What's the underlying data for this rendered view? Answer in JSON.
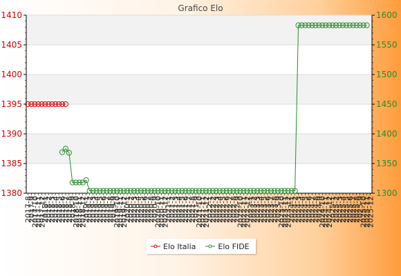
{
  "chart_data": {
    "type": "line",
    "title": "Grafico Elo",
    "y_left": {
      "ylim": [
        1380,
        1410
      ],
      "ticks": [
        1380,
        1385,
        1390,
        1395,
        1400,
        1405,
        1410
      ],
      "color": "#d00000"
    },
    "y_right": {
      "ylim": [
        1300,
        1600
      ],
      "ticks": [
        1300,
        1350,
        1400,
        1450,
        1500,
        1550,
        1600
      ],
      "color": "#2a8a2a"
    },
    "x_labels": [
      "2017-8",
      "2017-9",
      "2017-10",
      "2017-11",
      "2017-12",
      "2018-1",
      "2018-2",
      "2018-3",
      "2018-4",
      "2018-5",
      "2018-6",
      "2018-7",
      "2018-8",
      "2018-9",
      "2018-10",
      "2018-11",
      "2018-12",
      "2019-1",
      "2019-2",
      "2019-3",
      "2019-4",
      "2019-5",
      "2019-6",
      "2019-7",
      "2019-8",
      "2019-9",
      "2019-10",
      "2019-11",
      "2019-12",
      "2020-1",
      "2020-2",
      "2020-3",
      "2020-4",
      "2020-5",
      "2020-6",
      "2020-7",
      "2020-8",
      "2020-9",
      "2020-10",
      "2020-11",
      "2020-12",
      "2021-1",
      "2021-2",
      "2021-3",
      "2021-4",
      "2021-5",
      "2021-6",
      "2021-7",
      "2021-8",
      "2021-9",
      "2021-10",
      "2021-11",
      "2021-12",
      "2022-1",
      "2022-2",
      "2022-3",
      "2022-4",
      "2022-5",
      "2022-6",
      "2022-7",
      "2022-8",
      "2022-9",
      "2022-10",
      "2022-11",
      "2022-12",
      "2023-1",
      "2023-2",
      "2023-3",
      "2023-4",
      "2023-5",
      "2023-6",
      "2023-7",
      "2023-8",
      "2023-9",
      "2023-10",
      "2023-11",
      "2023-12",
      "2024-1",
      "2024-2",
      "2024-3",
      "2024-4",
      "2024-5",
      "2024-6",
      "2024-7",
      "2024-8",
      "2024-9",
      "2024-10",
      "2024-11",
      "2024-12",
      "2025-1",
      "2025-2",
      "2025-3",
      "2025-4",
      "2025-5",
      "2025-6",
      "2025-7",
      "2025-8",
      "2025-9",
      "2025-10",
      "2025-11",
      "2025-12"
    ],
    "series": [
      {
        "name": "Elo Italia",
        "axis": "left",
        "color": "#d00000",
        "values": [
          1395,
          1395,
          1395,
          1395,
          1395,
          1395,
          1395,
          1395,
          1395,
          1395,
          1395,
          1395
        ]
      },
      {
        "name": "Elo FIDE",
        "axis": "right",
        "color": "#2a8a2a",
        "values": [
          null,
          null,
          null,
          null,
          null,
          null,
          null,
          null,
          null,
          null,
          1369,
          1375,
          1368,
          1318,
          1318,
          1318,
          1318,
          1322,
          1304,
          1304,
          1304,
          1304,
          1304,
          1304,
          1304,
          1304,
          1304,
          1304,
          1304,
          1304,
          1304,
          1304,
          1304,
          1304,
          1304,
          1304,
          1304,
          1304,
          1304,
          1304,
          1304,
          1304,
          1304,
          1304,
          1304,
          1304,
          1304,
          1304,
          1304,
          1304,
          1304,
          1304,
          1304,
          1304,
          1304,
          1304,
          1304,
          1304,
          1304,
          1304,
          1304,
          1304,
          1304,
          1304,
          1304,
          1304,
          1304,
          1304,
          1304,
          1304,
          1304,
          1304,
          1304,
          1304,
          1304,
          1304,
          1304,
          1304,
          1304,
          1583,
          1583,
          1583,
          1583,
          1583,
          1583,
          1583,
          1583,
          1583,
          1583,
          1583,
          1583,
          1583,
          1583,
          1583,
          1583,
          1583,
          1583,
          1583,
          1583,
          1583
        ]
      }
    ],
    "legend": "bottom",
    "grid": true
  }
}
